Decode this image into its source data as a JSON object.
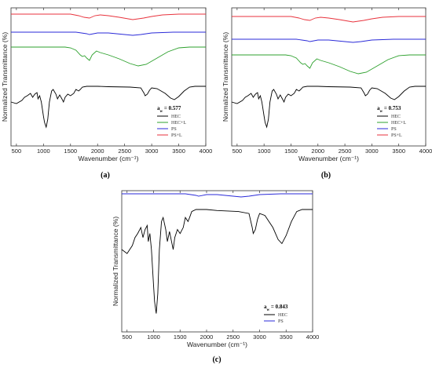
{
  "chart_data": [
    {
      "type": "line",
      "panel_label": "(a)",
      "xlabel": "Wavenumber (cm⁻¹)",
      "ylabel": "Normalized Transmittance (%)",
      "xlim": [
        400,
        4000
      ],
      "xticks": [
        "500",
        "1000",
        "1500",
        "2000",
        "2500",
        "3000",
        "3500",
        "4000"
      ],
      "annotation": {
        "sym": "a",
        "sub": "w",
        "rest": " = 0.577"
      },
      "legend_position": "bottom-right",
      "grid": false,
      "series": [
        {
          "name": "HEC",
          "color": "#000000"
        },
        {
          "name": "HEC+L",
          "color": "#2ca02c"
        },
        {
          "name": "PS",
          "color": "#2a2ad8"
        },
        {
          "name": "PS+L",
          "color": "#e8323c"
        }
      ]
    },
    {
      "type": "line",
      "panel_label": "(b)",
      "xlabel": "Wavenumber (cm⁻¹)",
      "ylabel": "Normalized Transmittance (%)",
      "xlim": [
        400,
        4000
      ],
      "xticks": [
        "500",
        "1000",
        "1500",
        "2000",
        "2500",
        "3000",
        "3500",
        "4000"
      ],
      "annotation": {
        "sym": "a",
        "sub": "w",
        "rest": " = 0.753"
      },
      "legend_position": "bottom-right",
      "grid": false,
      "series": [
        {
          "name": "HEC",
          "color": "#000000"
        },
        {
          "name": "HEC+L",
          "color": "#2ca02c"
        },
        {
          "name": "PS",
          "color": "#2a2ad8"
        },
        {
          "name": "PS+L",
          "color": "#e8323c"
        }
      ]
    },
    {
      "type": "line",
      "panel_label": "(c)",
      "xlabel": "Wavenumber (cm⁻¹)",
      "ylabel": "Normalized Transmittance (%)",
      "xlim": [
        400,
        4000
      ],
      "xticks": [
        "500",
        "1000",
        "1500",
        "2000",
        "2500",
        "3000",
        "3500",
        "4000"
      ],
      "annotation": {
        "sym": "a",
        "sub": "w",
        "rest": " = 0.843"
      },
      "legend_position": "bottom-right",
      "grid": false,
      "series": [
        {
          "name": "HEC",
          "color": "#000000"
        },
        {
          "name": "PS",
          "color": "#2a2ad8"
        }
      ]
    }
  ]
}
